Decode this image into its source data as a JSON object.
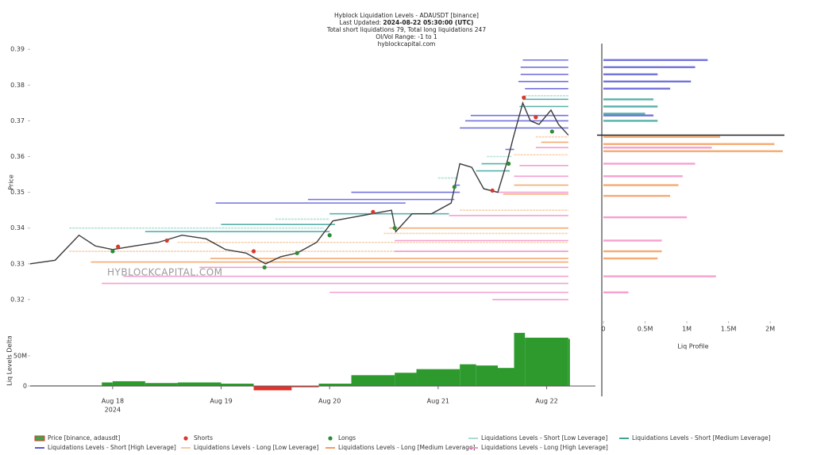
{
  "chart_data": {
    "type": "liquidation_levels",
    "title": "Hyblock Liquidation Levels - ADAUSDT [binance]",
    "updated_label": "Last Updated: ",
    "updated_value": "2024-08-22 05:30:00 (UTC)",
    "totals": "Total short liquidations 79, Total long liquidations 247",
    "range": "OI/Vol Range: -1 to 1",
    "source": "hyblockcapital.com",
    "watermark": "HYBLOCKCAPITAL.COM",
    "ylabel": "Price",
    "xlim": [
      17.24,
      22.45
    ],
    "ylim": [
      0.3151,
      0.3916
    ],
    "yticks": [
      0.32,
      0.33,
      0.34,
      0.35,
      0.36,
      0.37,
      0.38,
      0.39
    ],
    "xticks": [
      {
        "value": 18,
        "label": "Aug 18",
        "sublabel": "2024"
      },
      {
        "value": 19,
        "label": "Aug 19"
      },
      {
        "value": 20,
        "label": "Aug 20"
      },
      {
        "value": 21,
        "label": "Aug 21"
      },
      {
        "value": 22,
        "label": "Aug 22"
      }
    ],
    "price": {
      "name": "Price [binance, adausdt]",
      "color": "#3b3b3b",
      "x": [
        17.24,
        17.47,
        17.69,
        17.84,
        18.0,
        18.2,
        18.42,
        18.64,
        18.86,
        19.04,
        19.23,
        19.41,
        19.55,
        19.7,
        19.88,
        20.03,
        20.21,
        20.39,
        20.57,
        20.61,
        20.76,
        20.94,
        21.12,
        21.2,
        21.31,
        21.42,
        21.55,
        21.64,
        21.69,
        21.78,
        21.85,
        21.93,
        22.04,
        22.11,
        22.2
      ],
      "values": [
        0.33,
        0.331,
        0.338,
        0.335,
        0.334,
        0.335,
        0.336,
        0.338,
        0.337,
        0.334,
        0.333,
        0.33,
        0.332,
        0.333,
        0.336,
        0.342,
        0.343,
        0.344,
        0.345,
        0.339,
        0.344,
        0.344,
        0.347,
        0.358,
        0.357,
        0.351,
        0.35,
        0.359,
        0.365,
        0.375,
        0.37,
        0.369,
        0.373,
        0.369,
        0.366
      ]
    },
    "shorts": {
      "name": "Shorts",
      "color": "#d63a2f",
      "x": [
        18.05,
        18.5,
        19.3,
        20.4,
        21.5,
        21.79,
        21.9
      ],
      "values": [
        0.3348,
        0.3365,
        0.3335,
        0.3445,
        0.3505,
        0.3765,
        0.371
      ]
    },
    "longs": {
      "name": "Longs",
      "color": "#2e8b35",
      "x": [
        18.0,
        19.4,
        19.7,
        20.0,
        20.6,
        21.15,
        21.65,
        22.05
      ],
      "values": [
        0.3335,
        0.329,
        0.333,
        0.338,
        0.34,
        0.3515,
        0.358,
        0.367
      ]
    },
    "series": [
      {
        "name": "Liquidations Levels - Short [Low Leverage]",
        "color": "#a8dcd4",
        "levels": [
          0.377,
          0.36,
          0.354,
          0.3425,
          0.34
        ],
        "start": [
          21.8,
          21.45,
          21.0,
          19.5,
          17.6
        ],
        "end": [
          22.2,
          21.68,
          21.18,
          20.0,
          19.95
        ]
      },
      {
        "name": "Liquidations Levels - Short [Medium Leverage]",
        "color": "#3aa59a",
        "levels": [
          0.376,
          0.374,
          0.358,
          0.356,
          0.344,
          0.341,
          0.339
        ],
        "start": [
          21.78,
          21.75,
          21.4,
          21.35,
          20.0,
          19.0,
          18.3
        ],
        "end": [
          22.2,
          22.2,
          21.66,
          21.66,
          21.1,
          20.05,
          20.0
        ]
      },
      {
        "name": "Liquidations Levels - Short [High Leverage]",
        "color": "#5b5bd6",
        "levels": [
          0.387,
          0.385,
          0.383,
          0.381,
          0.379,
          0.3715,
          0.37,
          0.368,
          0.362,
          0.352,
          0.35,
          0.348,
          0.347
        ],
        "start": [
          21.78,
          21.76,
          21.76,
          21.74,
          21.8,
          21.3,
          21.25,
          21.2,
          21.62,
          21.15,
          20.2,
          19.8,
          18.95
        ],
        "end": [
          22.2,
          22.2,
          22.2,
          22.2,
          22.2,
          22.2,
          22.2,
          22.2,
          21.7,
          21.2,
          21.2,
          21.15,
          20.7
        ]
      },
      {
        "name": "Liquidations Levels - Long [Low Leverage]",
        "color": "#f8c9a0",
        "levels": [
          0.3655,
          0.3605,
          0.345,
          0.3385,
          0.336,
          0.3335
        ],
        "start": [
          21.9,
          21.7,
          21.2,
          20.5,
          18.6,
          17.6
        ],
        "end": [
          22.2,
          22.2,
          22.2,
          22.2,
          22.2,
          22.2
        ]
      },
      {
        "name": "Liquidations Levels - Long [Medium Leverage]",
        "color": "#f39c5a",
        "levels": [
          0.364,
          0.352,
          0.3495,
          0.34,
          0.3315,
          0.3305
        ],
        "start": [
          21.95,
          21.7,
          21.6,
          20.55,
          18.9,
          17.8
        ],
        "end": [
          22.2,
          22.2,
          22.2,
          22.2,
          22.2,
          22.2
        ]
      },
      {
        "name": "Liquidations Levels - Long [High Leverage]",
        "color": "#f48fc8",
        "levels": [
          0.3625,
          0.3575,
          0.3545,
          0.35,
          0.3435,
          0.3365,
          0.3335,
          0.329,
          0.3265,
          0.3245,
          0.322,
          0.32
        ],
        "start": [
          21.9,
          21.75,
          21.7,
          21.55,
          21.1,
          20.6,
          20.6,
          18.8,
          18.1,
          17.9,
          20.0,
          21.5
        ],
        "end": [
          22.2,
          22.2,
          22.2,
          22.2,
          22.2,
          22.2,
          22.2,
          22.2,
          22.2,
          22.2,
          22.2,
          22.2
        ]
      }
    ],
    "profile": {
      "xlabel": "Liq Profile",
      "xlim": [
        0,
        2170000
      ],
      "xticks": [
        0,
        {
          "value": 500000,
          "label": "0.5M"
        },
        {
          "value": 1000000,
          "label": "1M"
        },
        {
          "value": 1500000,
          "label": "1.5M"
        },
        {
          "value": 2000000,
          "label": "2M"
        }
      ],
      "series": [
        {
          "color": "#5b5bd6",
          "prices": [
            0.387,
            0.385,
            0.383,
            0.381,
            0.379,
            0.3715
          ],
          "values": [
            1250000,
            1100000,
            650000,
            1050000,
            800000,
            600000
          ]
        },
        {
          "color": "#3aa59a",
          "prices": [
            0.376,
            0.374,
            0.372,
            0.37
          ],
          "values": [
            600000,
            650000,
            500000,
            650000
          ]
        },
        {
          "color": "#f39c5a",
          "prices": [
            0.3655,
            0.3635,
            0.3615,
            0.352,
            0.349,
            0.3335,
            0.3315
          ],
          "values": [
            1400000,
            2050000,
            2150000,
            900000,
            800000,
            700000,
            650000
          ]
        },
        {
          "color": "#f48fc8",
          "prices": [
            0.3625,
            0.358,
            0.3545,
            0.343,
            0.3365,
            0.3265,
            0.322
          ],
          "values": [
            1300000,
            1100000,
            950000,
            1000000,
            700000,
            1350000,
            300000
          ]
        }
      ]
    },
    "delta": {
      "ylabel": "Liq Levels Delta",
      "ylim": [
        -17000000,
        101000000
      ],
      "yticks": [
        0,
        {
          "value": 50000000,
          "label": "50M"
        }
      ],
      "positive_color": "#2e9a2e",
      "negative_color": "#e8302a",
      "x": [
        17.24,
        17.6,
        17.9,
        18.0,
        18.3,
        18.6,
        19.0,
        19.3,
        19.65,
        19.9,
        20.2,
        20.6,
        20.8,
        21.1,
        21.2,
        21.35,
        21.55,
        21.7,
        21.8,
        22.2
      ],
      "values": [
        1000000,
        1000000,
        6000000,
        8000000,
        5000000,
        6000000,
        4000000,
        -7000000,
        -2000000,
        4000000,
        18000000,
        22000000,
        28000000,
        28000000,
        36000000,
        34000000,
        30000000,
        88000000,
        80000000,
        78000000
      ]
    }
  }
}
